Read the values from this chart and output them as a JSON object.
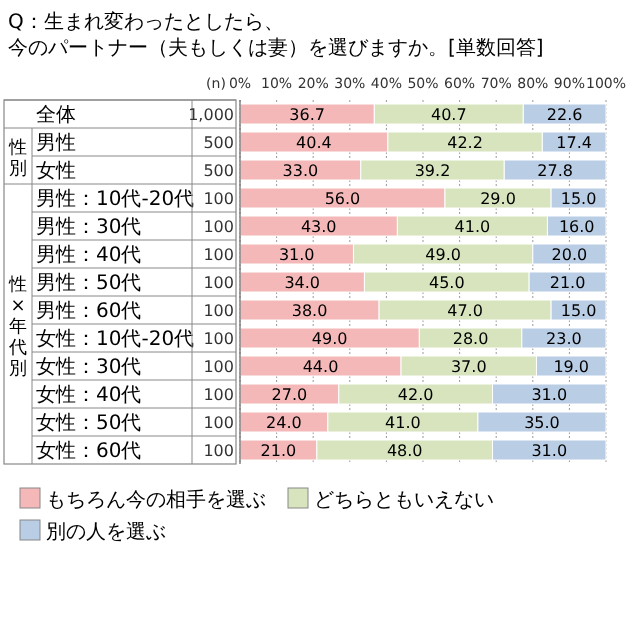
{
  "chart_data": {
    "type": "bar",
    "orientation": "horizontal",
    "stacked": true,
    "title": "Q：生まれ変わったとしたら、今のパートナー（夫もしくは妻）を選びますか。[単数回答]",
    "categories": [
      "全体",
      "男性",
      "女性",
      "男性：10代-20代",
      "男性：30代",
      "男性：40代",
      "男性：50代",
      "男性：60代",
      "女性：10代-20代",
      "女性：30代",
      "女性：40代",
      "女性：50代",
      "女性：60代"
    ],
    "series": [
      {
        "name": "もちろん今の相手を選ぶ",
        "color": "#f4b8b8",
        "values": [
          36.7,
          40.4,
          33.0,
          56.0,
          43.0,
          31.0,
          34.0,
          38.0,
          49.0,
          44.0,
          27.0,
          24.0,
          21.0
        ],
        "value_labels": [
          "36.7",
          "40.4",
          "33.0",
          "56.0",
          "43.0",
          "31.0",
          "34.0",
          "38.0",
          "49.0",
          "44.0",
          "27.0",
          "24.0",
          "21.0"
        ]
      },
      {
        "name": "どちらともいえない",
        "color": "#d7e4bd",
        "values": [
          40.7,
          42.2,
          39.2,
          29.0,
          41.0,
          49.0,
          45.0,
          47.0,
          28.0,
          37.0,
          42.0,
          41.0,
          48.0
        ],
        "value_labels": [
          "40.7",
          "42.2",
          "39.2",
          "29.0",
          "41.0",
          "49.0",
          "45.0",
          "47.0",
          "28.0",
          "37.0",
          "42.0",
          "41.0",
          "48.0"
        ]
      },
      {
        "name": "別の人を選ぶ",
        "color": "#b9cde5",
        "values": [
          22.6,
          17.4,
          27.8,
          15.0,
          16.0,
          20.0,
          21.0,
          15.0,
          23.0,
          19.0,
          31.0,
          35.0,
          31.0
        ],
        "value_labels": [
          "22.6",
          "17.4",
          "27.8",
          "15.0",
          "16.0",
          "20.0",
          "21.0",
          "15.0",
          "23.0",
          "19.0",
          "31.0",
          "35.0",
          "31.0"
        ]
      }
    ],
    "xlim": [
      0,
      100
    ],
    "xticks": [
      {
        "value": 0,
        "label": "0%"
      },
      {
        "value": 10,
        "label": "10%"
      },
      {
        "value": 20,
        "label": "20%"
      },
      {
        "value": 30,
        "label": "30%"
      },
      {
        "value": 40,
        "label": "40%"
      },
      {
        "value": 50,
        "label": "50%"
      },
      {
        "value": 60,
        "label": "60%"
      },
      {
        "value": 70,
        "label": "70%"
      },
      {
        "value": 80,
        "label": "80%"
      },
      {
        "value": 90,
        "label": "90%"
      },
      {
        "value": 100,
        "label": "100%"
      }
    ],
    "grid": "x",
    "legend": "bottom",
    "annotations": [
      "(n)",
      "性別",
      "性×年代別",
      "1,000",
      "500",
      "500",
      "100",
      "100",
      "100",
      "100",
      "100",
      "100",
      "100",
      "100",
      "100",
      "100"
    ]
  }
}
